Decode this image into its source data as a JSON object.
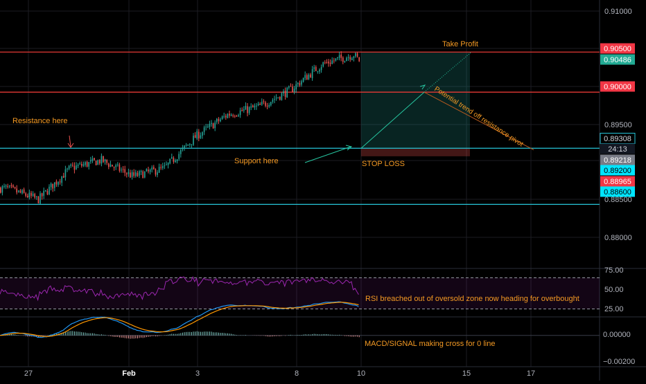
{
  "colors": {
    "background": "#000000",
    "grid": "#1c1c22",
    "up": "#26a69a",
    "down": "#ef5350",
    "resistance_line": "#e53935",
    "support_line": "#26c6da",
    "annotation": "#f59a23",
    "trend_line": "#26c6a0",
    "rsi": "#9c27b0",
    "macd": "#2196f3",
    "signal": "#ff9800",
    "axis_text": "#b2b5be"
  },
  "chart_data": [
    {
      "id": "price",
      "type": "candlestick",
      "ylim": [
        0.878,
        0.9115
      ],
      "y_ticks": [
        "0.91000",
        "0.89500",
        "0.88500",
        "0.88000"
      ],
      "x_ticks": [
        "27",
        "Feb",
        "3",
        "8",
        "10",
        "15",
        "17"
      ],
      "resistance_levels": [
        0.905,
        0.9
      ],
      "support_levels": [
        0.893,
        0.886
      ],
      "price_tags": [
        {
          "label": "0.90500",
          "style": "red"
        },
        {
          "label": "0.90486",
          "style": "green"
        },
        {
          "label": "0.90000",
          "style": "red"
        },
        {
          "label": "0.89308",
          "style": "outline-teal"
        },
        {
          "label": "24:13",
          "style": "dark"
        },
        {
          "label": "0.89218",
          "style": "gray"
        },
        {
          "label": "0.89200",
          "style": "cyan"
        },
        {
          "label": "0.88965",
          "style": "red"
        },
        {
          "label": "0.88600",
          "style": "cyan"
        }
      ],
      "close_path": [
        [
          "Jan 26",
          0.888
        ],
        [
          "Jan 27",
          0.8866
        ],
        [
          "Jan 28",
          0.8905
        ],
        [
          "Jan 29",
          0.8915
        ],
        [
          "Jan 30",
          0.8895
        ],
        [
          "Jan 31",
          0.8905
        ],
        [
          "Feb 1",
          0.8945
        ],
        [
          "Feb 2",
          0.8972
        ],
        [
          "Feb 3",
          0.8982
        ],
        [
          "Feb 4",
          0.9003
        ],
        [
          "Feb 5",
          0.9035
        ],
        [
          "Feb 6",
          0.9047
        ],
        [
          "Feb 7",
          0.9005
        ],
        [
          "Feb 8",
          0.9
        ],
        [
          "Feb 8.5",
          0.899
        ],
        [
          "Feb 9",
          0.8945
        ],
        [
          "Feb 9.5",
          0.893
        ]
      ],
      "position": {
        "entry": 0.893,
        "target": 0.905,
        "stop": 0.892,
        "start": "Feb 10",
        "end": "Feb 15"
      },
      "annotations": {
        "resistance": "Resistance here",
        "support": "Support here",
        "take_profit": "Take Profit",
        "stop_loss": "STOP LOSS",
        "trend": "Potential trend off resistance pivot"
      }
    },
    {
      "id": "rsi",
      "type": "line",
      "ylim": [
        18,
        82
      ],
      "y_ticks": [
        "75.00",
        "50.00",
        "25.00"
      ],
      "bands": [
        70,
        30
      ],
      "annotation": "RSI breached out of oversold zone now heading for overbought"
    },
    {
      "id": "macd",
      "type": "line",
      "ylim": [
        -0.0022,
        0.0013
      ],
      "y_ticks": [
        "0.00000",
        "−0.00200"
      ],
      "series": [
        {
          "name": "MACD"
        },
        {
          "name": "SIGNAL"
        }
      ],
      "annotation": "MACD/SIGNAL making cross for 0 line"
    }
  ]
}
